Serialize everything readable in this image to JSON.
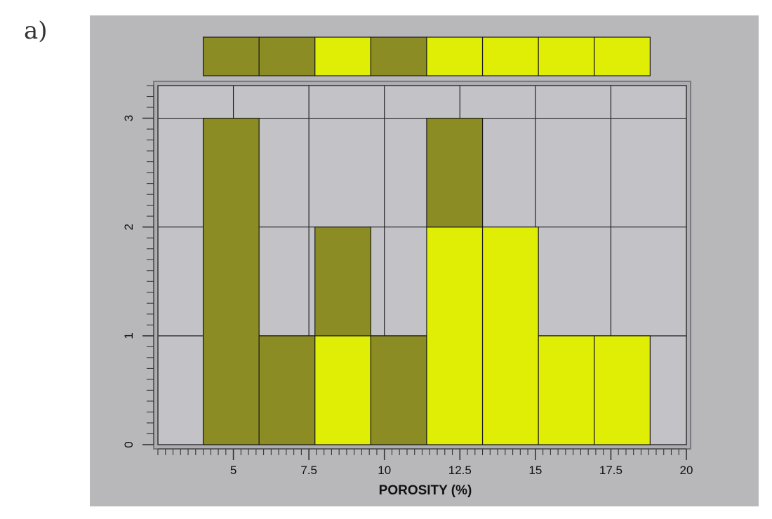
{
  "panel_label": "a)",
  "colors": {
    "background": "#b8b8bb",
    "plot_background": "#c3c3c7",
    "olive": "#8c8c24",
    "yellow": "#e0ee06",
    "frame": "#7a7a7e"
  },
  "chart_data": {
    "type": "bar",
    "stacked": true,
    "title": "",
    "xlabel": "POROSITY (%)",
    "ylabel": "",
    "xlim": [
      2.5,
      20
    ],
    "ylim": [
      0,
      3.3
    ],
    "x_ticks": [
      "5",
      "7.5",
      "10",
      "12.5",
      "15",
      "17.5",
      "20"
    ],
    "y_ticks": [
      "0",
      "1",
      "2",
      "3"
    ],
    "grid": true,
    "bins": [
      {
        "x0": 4.0,
        "x1": 5.85,
        "segments": [
          {
            "color": "olive",
            "count": 3
          }
        ]
      },
      {
        "x0": 5.85,
        "x1": 7.7,
        "segments": [
          {
            "color": "olive",
            "count": 1
          }
        ]
      },
      {
        "x0": 7.7,
        "x1": 9.55,
        "segments": [
          {
            "color": "yellow",
            "count": 1
          },
          {
            "color": "olive",
            "count": 1
          }
        ]
      },
      {
        "x0": 9.55,
        "x1": 11.4,
        "segments": [
          {
            "color": "olive",
            "count": 1
          }
        ]
      },
      {
        "x0": 11.4,
        "x1": 13.25,
        "segments": [
          {
            "color": "yellow",
            "count": 2
          },
          {
            "color": "olive",
            "count": 1
          }
        ]
      },
      {
        "x0": 13.25,
        "x1": 15.1,
        "segments": [
          {
            "color": "yellow",
            "count": 2
          }
        ]
      },
      {
        "x0": 15.1,
        "x1": 16.95,
        "segments": [
          {
            "color": "yellow",
            "count": 1
          }
        ]
      },
      {
        "x0": 16.95,
        "x1": 18.8,
        "segments": [
          {
            "color": "yellow",
            "count": 1
          }
        ]
      }
    ],
    "top_strip": [
      "olive",
      "olive",
      "yellow",
      "olive",
      "yellow",
      "yellow",
      "yellow",
      "yellow"
    ]
  }
}
